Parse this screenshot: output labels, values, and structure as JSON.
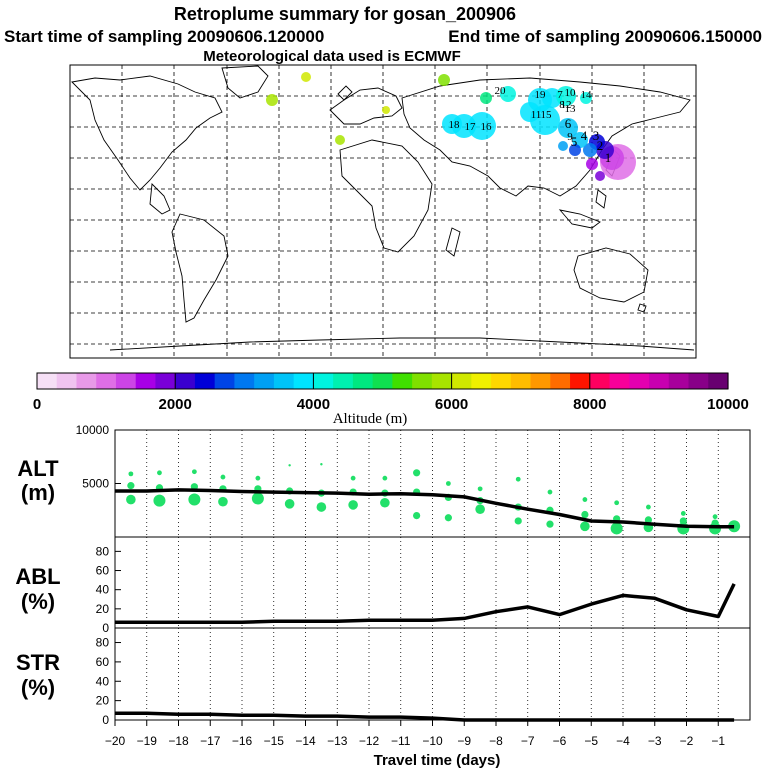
{
  "header": {
    "title": "Retroplume summary for gosan_200906",
    "start_label": "Start time of sampling 20090606.120000",
    "end_label": "End time of sampling 20090606.150000",
    "met_label": "Meteorological data used is ECMWF"
  },
  "colorbar": {
    "label": "Altitude (m)",
    "ticks": [
      "0",
      "2000",
      "4000",
      "6000",
      "8000",
      "10000"
    ],
    "range": [
      0,
      10000
    ],
    "colors": [
      "#f6e0f6",
      "#f0c4f0",
      "#e89ae8",
      "#df6ee6",
      "#cc44e6",
      "#a800e6",
      "#7a00d8",
      "#3a00d0",
      "#0000d8",
      "#0044e6",
      "#0078f0",
      "#00a0f4",
      "#00c4f8",
      "#00e4ff",
      "#00f4e0",
      "#00f0b0",
      "#00e880",
      "#10e050",
      "#40e000",
      "#80e000",
      "#a8e400",
      "#d0e800",
      "#f0f000",
      "#ffd800",
      "#ffbc00",
      "#ff9800",
      "#ff6c00",
      "#ff1400",
      "#ff0060",
      "#f8009a",
      "#e400b0",
      "#c800b0",
      "#a8009c",
      "#880088",
      "#680070"
    ]
  },
  "map": {
    "labels": [
      "1",
      "2",
      "3",
      "4",
      "5",
      "6",
      "7",
      "8",
      "9",
      "10",
      "11",
      "12",
      "13",
      "14",
      "15",
      "16",
      "17",
      "18",
      "19",
      "20"
    ]
  },
  "chart_data": {
    "type": "line",
    "x": [
      -20,
      -19,
      -18,
      -17,
      -16,
      -15,
      -14,
      -13,
      -12,
      -11,
      -10,
      -9,
      -8,
      -7,
      -6,
      -5,
      -4,
      -3,
      -2,
      -1,
      -0.5
    ],
    "xlabel": "Travel time (days)",
    "xlim": [
      -20,
      0
    ],
    "xticks": [
      -20,
      -19,
      -18,
      -17,
      -16,
      -15,
      -14,
      -13,
      -12,
      -11,
      -10,
      -9,
      -8,
      -7,
      -6,
      -5,
      -4,
      -3,
      -2,
      -1
    ],
    "panels": [
      {
        "name": "ALT",
        "label_line1": "ALT",
        "label_line2": "(m)",
        "ylim": [
          0,
          10000
        ],
        "yticks": [
          5000,
          10000
        ],
        "yticklabels": [
          "5000",
          "10000"
        ],
        "series": [
          {
            "name": "median altitude",
            "values": [
              4300,
              4300,
              4400,
              4350,
              4250,
              4200,
              4150,
              4100,
              4000,
              4050,
              3950,
              3750,
              3150,
              2600,
              2100,
              1500,
              1400,
              1200,
              1000,
              950,
              950
            ]
          }
        ],
        "clusters": [
          {
            "x": -19.5,
            "y": [
              3500,
              4800,
              5900
            ],
            "r": [
              4,
              3,
              2
            ]
          },
          {
            "x": -18.6,
            "y": [
              3400,
              4600,
              6000
            ],
            "r": [
              5,
              3,
              2
            ]
          },
          {
            "x": -17.5,
            "y": [
              3500,
              4700,
              6100
            ],
            "r": [
              5,
              3,
              2
            ]
          },
          {
            "x": -16.6,
            "y": [
              3300,
              4500,
              5600
            ],
            "r": [
              4,
              3,
              2
            ]
          },
          {
            "x": -15.5,
            "y": [
              3600,
              4500,
              5500
            ],
            "r": [
              5,
              3,
              2
            ]
          },
          {
            "x": -14.5,
            "y": [
              3100,
              4300,
              6700
            ],
            "r": [
              4,
              3,
              1
            ]
          },
          {
            "x": -13.5,
            "y": [
              2800,
              4100,
              6800
            ],
            "r": [
              4,
              3,
              1
            ]
          },
          {
            "x": -12.5,
            "y": [
              3000,
              4200,
              5500
            ],
            "r": [
              4,
              3,
              2
            ]
          },
          {
            "x": -11.5,
            "y": [
              3200,
              4100,
              5500
            ],
            "r": [
              4,
              3,
              2
            ]
          },
          {
            "x": -10.5,
            "y": [
              2000,
              4200,
              6000
            ],
            "r": [
              3,
              3,
              3
            ]
          },
          {
            "x": -9.5,
            "y": [
              1800,
              3700,
              5000
            ],
            "r": [
              3,
              3,
              2
            ]
          },
          {
            "x": -8.5,
            "y": [
              2600,
              3400,
              4500
            ],
            "r": [
              4,
              3,
              2
            ]
          },
          {
            "x": -7.3,
            "y": [
              1500,
              2800,
              5400
            ],
            "r": [
              3,
              3,
              2
            ]
          },
          {
            "x": -6.3,
            "y": [
              1200,
              2500,
              4200
            ],
            "r": [
              3,
              3,
              2
            ]
          },
          {
            "x": -5.2,
            "y": [
              1000,
              2100,
              3500
            ],
            "r": [
              4,
              3,
              2
            ]
          },
          {
            "x": -4.2,
            "y": [
              800,
              1700,
              3200
            ],
            "r": [
              5,
              3,
              2
            ]
          },
          {
            "x": -3.2,
            "y": [
              900,
              1600,
              2800
            ],
            "r": [
              4,
              3,
              2
            ]
          },
          {
            "x": -2.1,
            "y": [
              800,
              1500,
              2200
            ],
            "r": [
              5,
              3,
              2
            ]
          },
          {
            "x": -1.1,
            "y": [
              800,
              1300,
              1900
            ],
            "r": [
              5,
              3,
              2
            ]
          },
          {
            "x": -0.5,
            "y": [
              1000
            ],
            "r": [
              5
            ]
          }
        ]
      },
      {
        "name": "ABL",
        "label_line1": "ABL",
        "label_line2": "(%)",
        "ylim": [
          0,
          95
        ],
        "yticks": [
          0,
          20,
          40,
          60,
          80
        ],
        "yticklabels": [
          "0",
          "20",
          "40",
          "60",
          "80"
        ],
        "series": [
          {
            "name": "ABL fraction",
            "values": [
              6,
              6,
              6,
              6,
              6,
              7,
              7,
              7,
              8,
              8,
              8,
              10,
              17,
              22,
              14,
              25,
              34,
              31,
              19,
              12,
              46
            ]
          }
        ]
      },
      {
        "name": "STR",
        "label_line1": "STR",
        "label_line2": "(%)",
        "ylim": [
          0,
          95
        ],
        "yticks": [
          0,
          20,
          40,
          60,
          80
        ],
        "yticklabels": [
          "0",
          "20",
          "40",
          "60",
          "80"
        ],
        "series": [
          {
            "name": "STR fraction",
            "values": [
              7,
              7,
              6,
              6,
              5,
              5,
              4,
              4,
              3,
              3,
              2,
              0,
              0,
              0,
              0,
              0,
              0,
              0,
              0,
              0,
              0
            ]
          }
        ]
      }
    ]
  }
}
